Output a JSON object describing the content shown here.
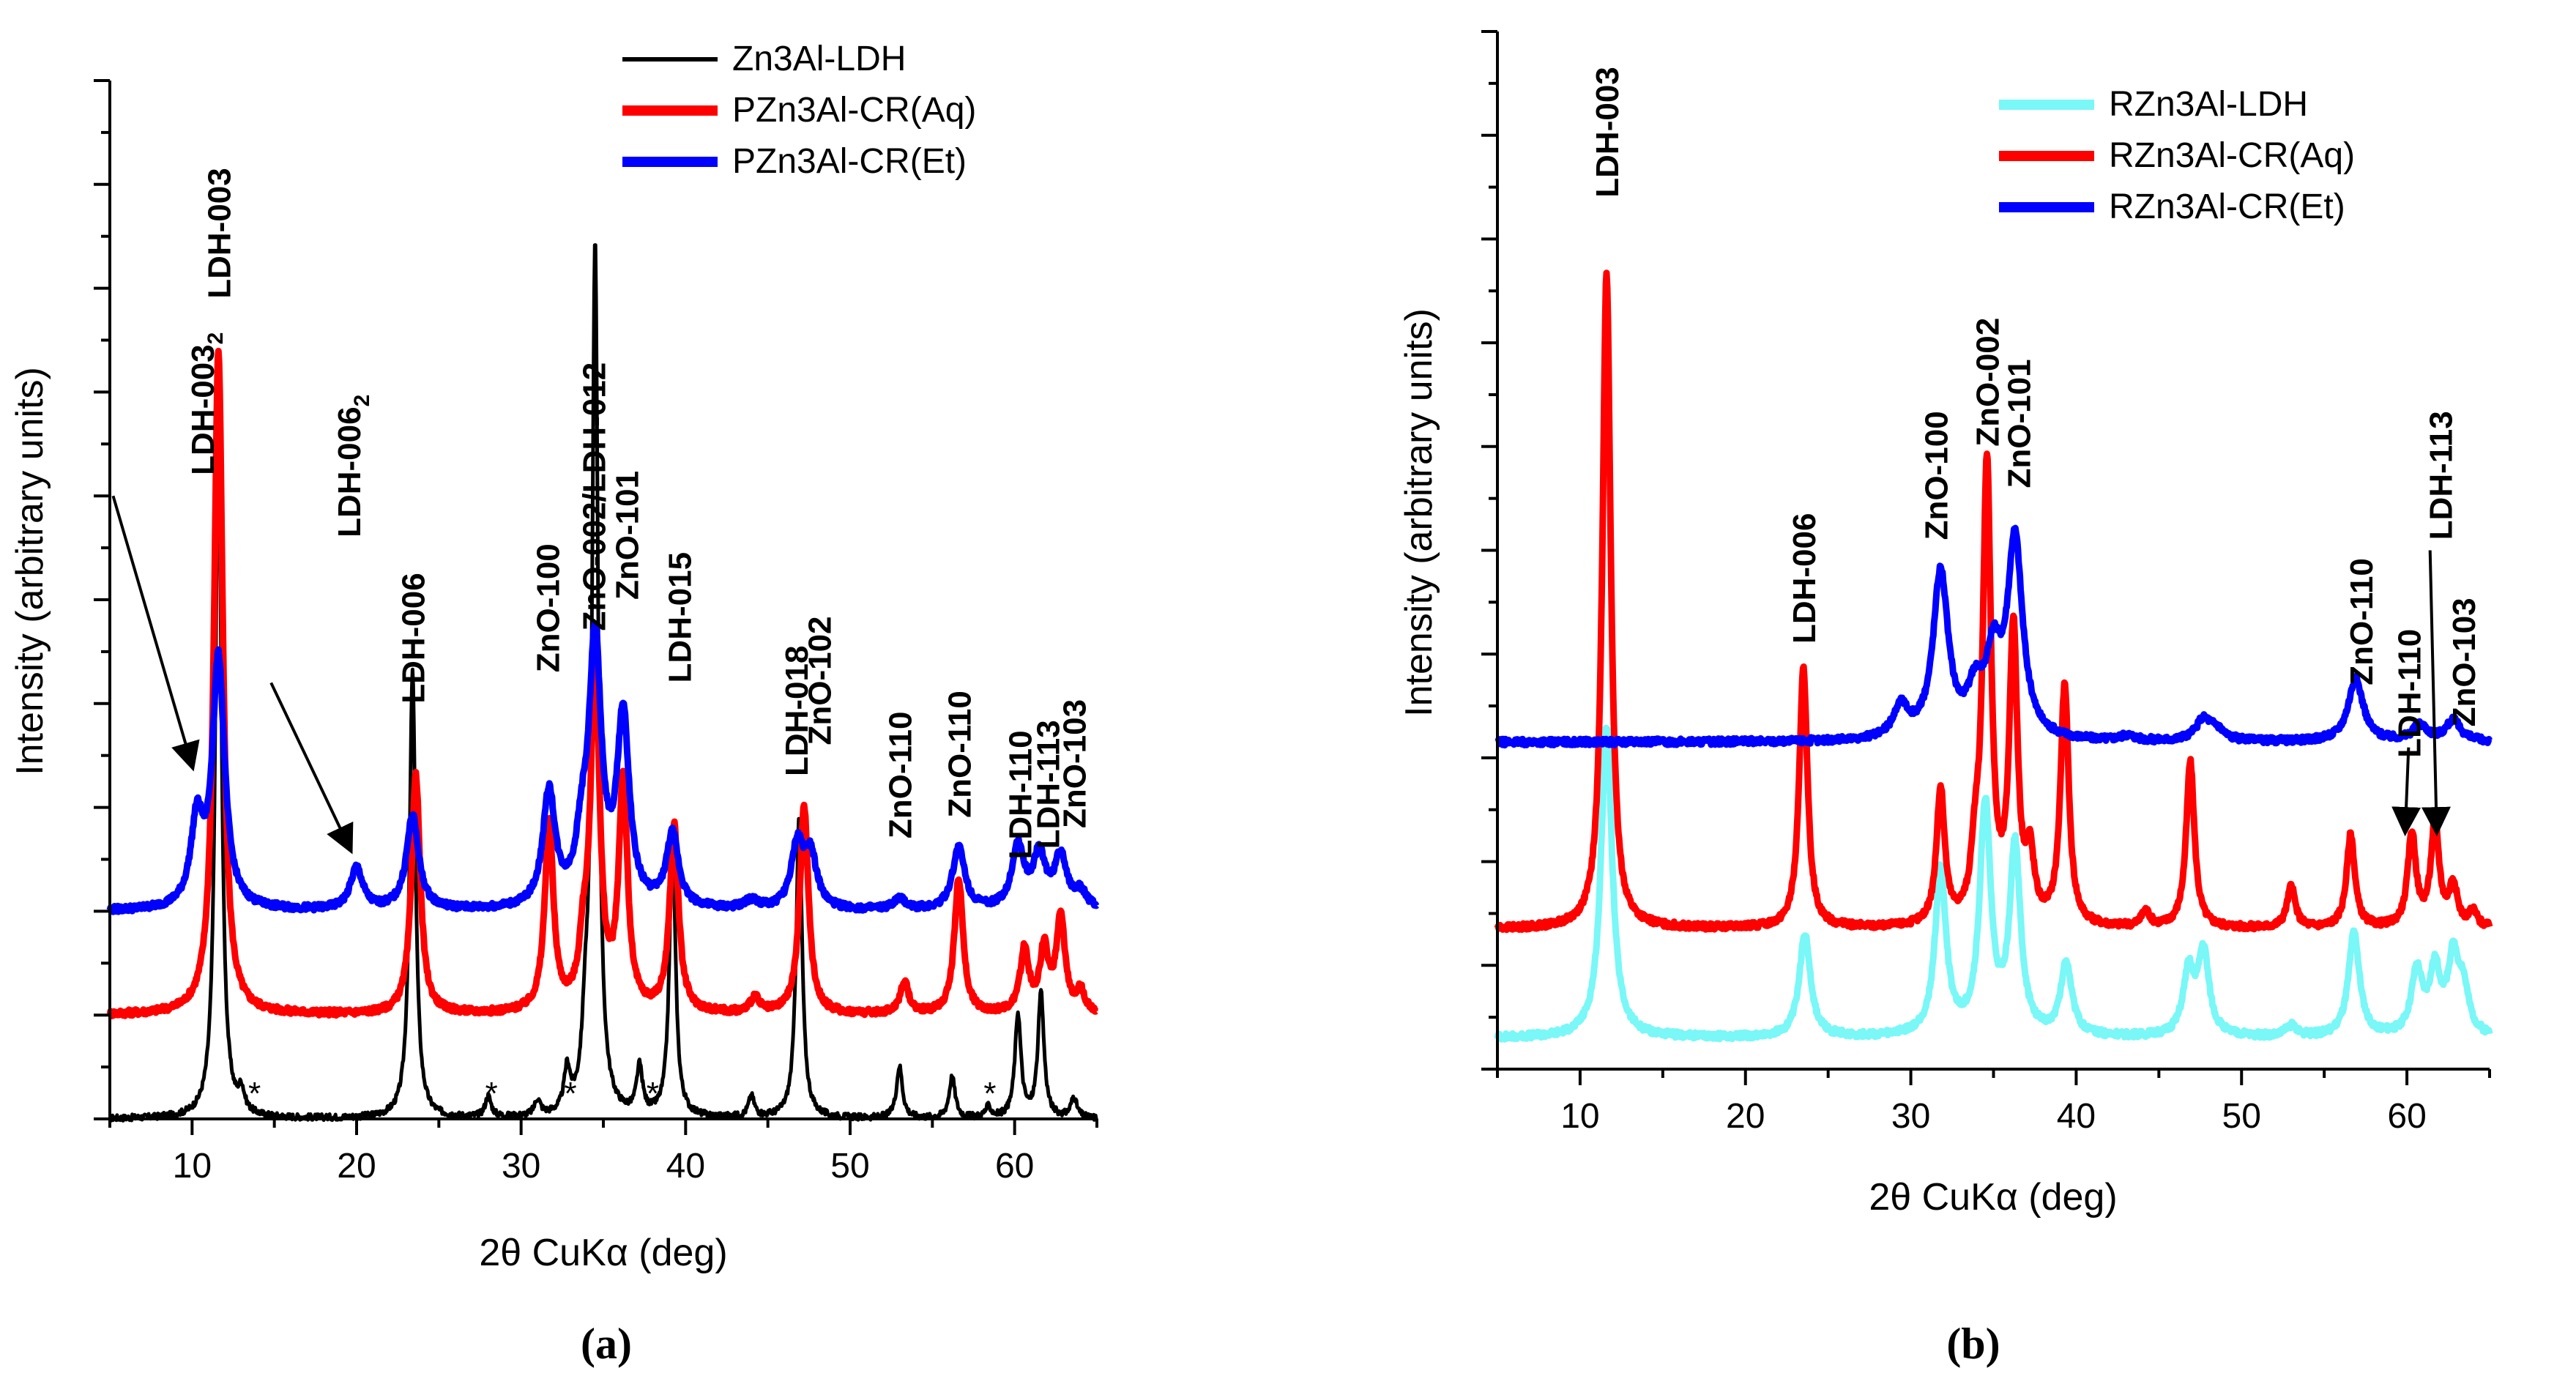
{
  "chart_data": [
    {
      "type": "line",
      "panel_label": "(a)",
      "xlabel": "2θ CuKα (deg)",
      "ylabel": "Intensity (arbitrary units)",
      "xlim": [
        5,
        65
      ],
      "ylim": [
        0,
        100
      ],
      "xticks": [
        10,
        20,
        30,
        40,
        50,
        60
      ],
      "series": [
        {
          "name": "Zn3Al-LDH",
          "color": "#000000",
          "offset": 0,
          "base": 0,
          "width": 0.22,
          "peaks": [
            [
              11.6,
              67
            ],
            [
              13.0,
              2
            ],
            [
              23.4,
              43
            ],
            [
              28.0,
              2
            ],
            [
              31.0,
              1.5
            ],
            [
              32.8,
              4
            ],
            [
              33.9,
              6
            ],
            [
              34.5,
              84
            ],
            [
              37.2,
              4.5
            ],
            [
              39.2,
              27
            ],
            [
              44.0,
              2
            ],
            [
              46.9,
              29
            ],
            [
              53.0,
              5
            ],
            [
              56.2,
              4
            ],
            [
              58.4,
              1
            ],
            [
              60.2,
              10
            ],
            [
              61.6,
              12
            ],
            [
              63.6,
              2
            ]
          ]
        },
        {
          "name": "PZn3Al-CR(Aq)",
          "color": "#ff0000",
          "offset": 10,
          "base": 0,
          "width": 0.32,
          "peaks": [
            [
              11.6,
              64
            ],
            [
              23.6,
              23
            ],
            [
              31.7,
              18
            ],
            [
              33.8,
              5
            ],
            [
              34.5,
              34
            ],
            [
              36.2,
              22
            ],
            [
              39.3,
              18
            ],
            [
              44.2,
              1.5
            ],
            [
              47.2,
              20
            ],
            [
              53.3,
              3
            ],
            [
              56.6,
              13
            ],
            [
              60.6,
              6
            ],
            [
              61.8,
              6
            ],
            [
              62.8,
              9
            ],
            [
              64.0,
              2
            ]
          ]
        },
        {
          "name": "PZn3Al-CR(Et)",
          "color": "#0000ff",
          "offset": 20,
          "base": 0,
          "width": 0.45,
          "peaks": [
            [
              10.3,
              8
            ],
            [
              11.6,
              24
            ],
            [
              20.0,
              4
            ],
            [
              23.4,
              9
            ],
            [
              31.7,
              11
            ],
            [
              33.7,
              5
            ],
            [
              34.5,
              25
            ],
            [
              36.2,
              18
            ],
            [
              39.2,
              7
            ],
            [
              44.0,
              0.8
            ],
            [
              46.8,
              6
            ],
            [
              47.6,
              5
            ],
            [
              53.0,
              1
            ],
            [
              56.6,
              6
            ],
            [
              60.2,
              6
            ],
            [
              61.5,
              5
            ],
            [
              62.8,
              5
            ],
            [
              64.0,
              1.5
            ]
          ]
        }
      ],
      "legend": [
        "Zn3Al-LDH",
        "PZn3Al-CR(Aq)",
        "PZn3Al-CR(Et)"
      ],
      "legend_position": "top-right",
      "annotations": [
        {
          "text": "LDH-003",
          "sub": "2",
          "x": 10.6,
          "y": 62
        },
        {
          "text": "LDH-003",
          "sub": "",
          "x": 11.6,
          "y": 79
        },
        {
          "text": "LDH-006",
          "sub": "2",
          "x": 19.5,
          "y": 56
        },
        {
          "text": "LDH-006",
          "sub": "",
          "x": 23.4,
          "y": 40
        },
        {
          "text": "ZnO-100",
          "sub": "",
          "x": 31.6,
          "y": 43
        },
        {
          "text": "ZnO-002/LDH-012",
          "sub": "",
          "x": 34.4,
          "y": 47
        },
        {
          "text": "ZnO-101",
          "sub": "",
          "x": 36.4,
          "y": 50
        },
        {
          "text": "LDH-015",
          "sub": "",
          "x": 39.6,
          "y": 42
        },
        {
          "text": "LDH-018",
          "sub": "",
          "x": 46.7,
          "y": 33
        },
        {
          "text": "ZnO-102",
          "sub": "",
          "x": 48.1,
          "y": 36
        },
        {
          "text": "ZnO-110",
          "sub": "",
          "x": 53.0,
          "y": 27
        },
        {
          "text": "ZnO-110",
          "sub": "",
          "x": 56.6,
          "y": 29
        },
        {
          "text": "LDH-110",
          "sub": "",
          "x": 60.3,
          "y": 25
        },
        {
          "text": "LDH-113",
          "sub": "",
          "x": 62.0,
          "y": 26
        },
        {
          "text": "ZnO-103",
          "sub": "",
          "x": 63.6,
          "y": 28
        }
      ],
      "star_markers": [
        13.8,
        28.2,
        33.0,
        38.0,
        58.5
      ],
      "star_symbol": "*"
    },
    {
      "type": "line",
      "panel_label": "(b)",
      "xlabel": "2θ CuKα (deg)",
      "ylabel": "Intensity (arbitrary units)",
      "xlim": [
        5,
        65
      ],
      "ylim": [
        0,
        100
      ],
      "xticks": [
        10,
        20,
        30,
        40,
        50,
        60
      ],
      "series": [
        {
          "name": "RZn3Al-LDH",
          "color": "#7af7f7",
          "offset": 3,
          "base": 0,
          "width": 0.4,
          "peaks": [
            [
              11.6,
              30
            ],
            [
              23.6,
              10
            ],
            [
              31.8,
              16
            ],
            [
              34.5,
              22
            ],
            [
              36.3,
              18
            ],
            [
              39.4,
              7
            ],
            [
              46.8,
              6
            ],
            [
              47.7,
              8
            ],
            [
              53.0,
              1
            ],
            [
              56.8,
              10
            ],
            [
              60.6,
              6
            ],
            [
              61.7,
              6
            ],
            [
              62.8,
              7
            ],
            [
              63.4,
              4
            ]
          ]
        },
        {
          "name": "RZn3Al-CR(Aq)",
          "color": "#ff0000",
          "offset": 13.5,
          "base": 0,
          "width": 0.3,
          "peaks": [
            [
              11.6,
              63
            ],
            [
              23.5,
              25
            ],
            [
              31.8,
              13
            ],
            [
              33.9,
              5
            ],
            [
              34.6,
              44
            ],
            [
              36.2,
              28
            ],
            [
              37.2,
              6
            ],
            [
              39.3,
              23
            ],
            [
              44.2,
              1.5
            ],
            [
              46.9,
              16
            ],
            [
              53.0,
              4
            ],
            [
              56.6,
              9
            ],
            [
              60.3,
              9
            ],
            [
              61.7,
              10
            ],
            [
              62.8,
              4
            ],
            [
              64.0,
              1.5
            ]
          ]
        },
        {
          "name": "RZn3Al-CR(Et)",
          "color": "#0000ff",
          "offset": 31.5,
          "base": 0,
          "width": 0.55,
          "peaks": [
            [
              29.4,
              3
            ],
            [
              31.8,
              16
            ],
            [
              33.9,
              4
            ],
            [
              35.0,
              7
            ],
            [
              36.3,
              19
            ],
            [
              43.1,
              0.5
            ],
            [
              47.7,
              2
            ],
            [
              48.5,
              1
            ],
            [
              56.9,
              6
            ],
            [
              60.8,
              1.5
            ],
            [
              62.8,
              2
            ]
          ]
        }
      ],
      "legend": [
        "RZn3Al-LDH",
        "RZn3Al-CR(Aq)",
        "RZn3Al-CR(Et)"
      ],
      "legend_position": "top-right",
      "annotations": [
        {
          "text": "LDH-003",
          "sub": "",
          "x": 11.6,
          "y": 84
        },
        {
          "text": "LDH-006",
          "sub": "",
          "x": 23.5,
          "y": 41
        },
        {
          "text": "ZnO-100",
          "sub": "",
          "x": 31.5,
          "y": 51
        },
        {
          "text": "ZnO-002",
          "sub": "",
          "x": 34.6,
          "y": 60
        },
        {
          "text": "ZnO-101",
          "sub": "",
          "x": 36.5,
          "y": 56
        },
        {
          "text": "ZnO-110",
          "sub": "",
          "x": 57.2,
          "y": 37
        },
        {
          "text": "LDH-110",
          "sub": "",
          "x": 60.1,
          "y": 30
        },
        {
          "text": "LDH-113",
          "sub": "",
          "x": 62.0,
          "y": 51
        },
        {
          "text": "ZnO-103",
          "sub": "",
          "x": 63.4,
          "y": 33
        }
      ],
      "star_markers": [],
      "star_symbol": "*"
    }
  ]
}
